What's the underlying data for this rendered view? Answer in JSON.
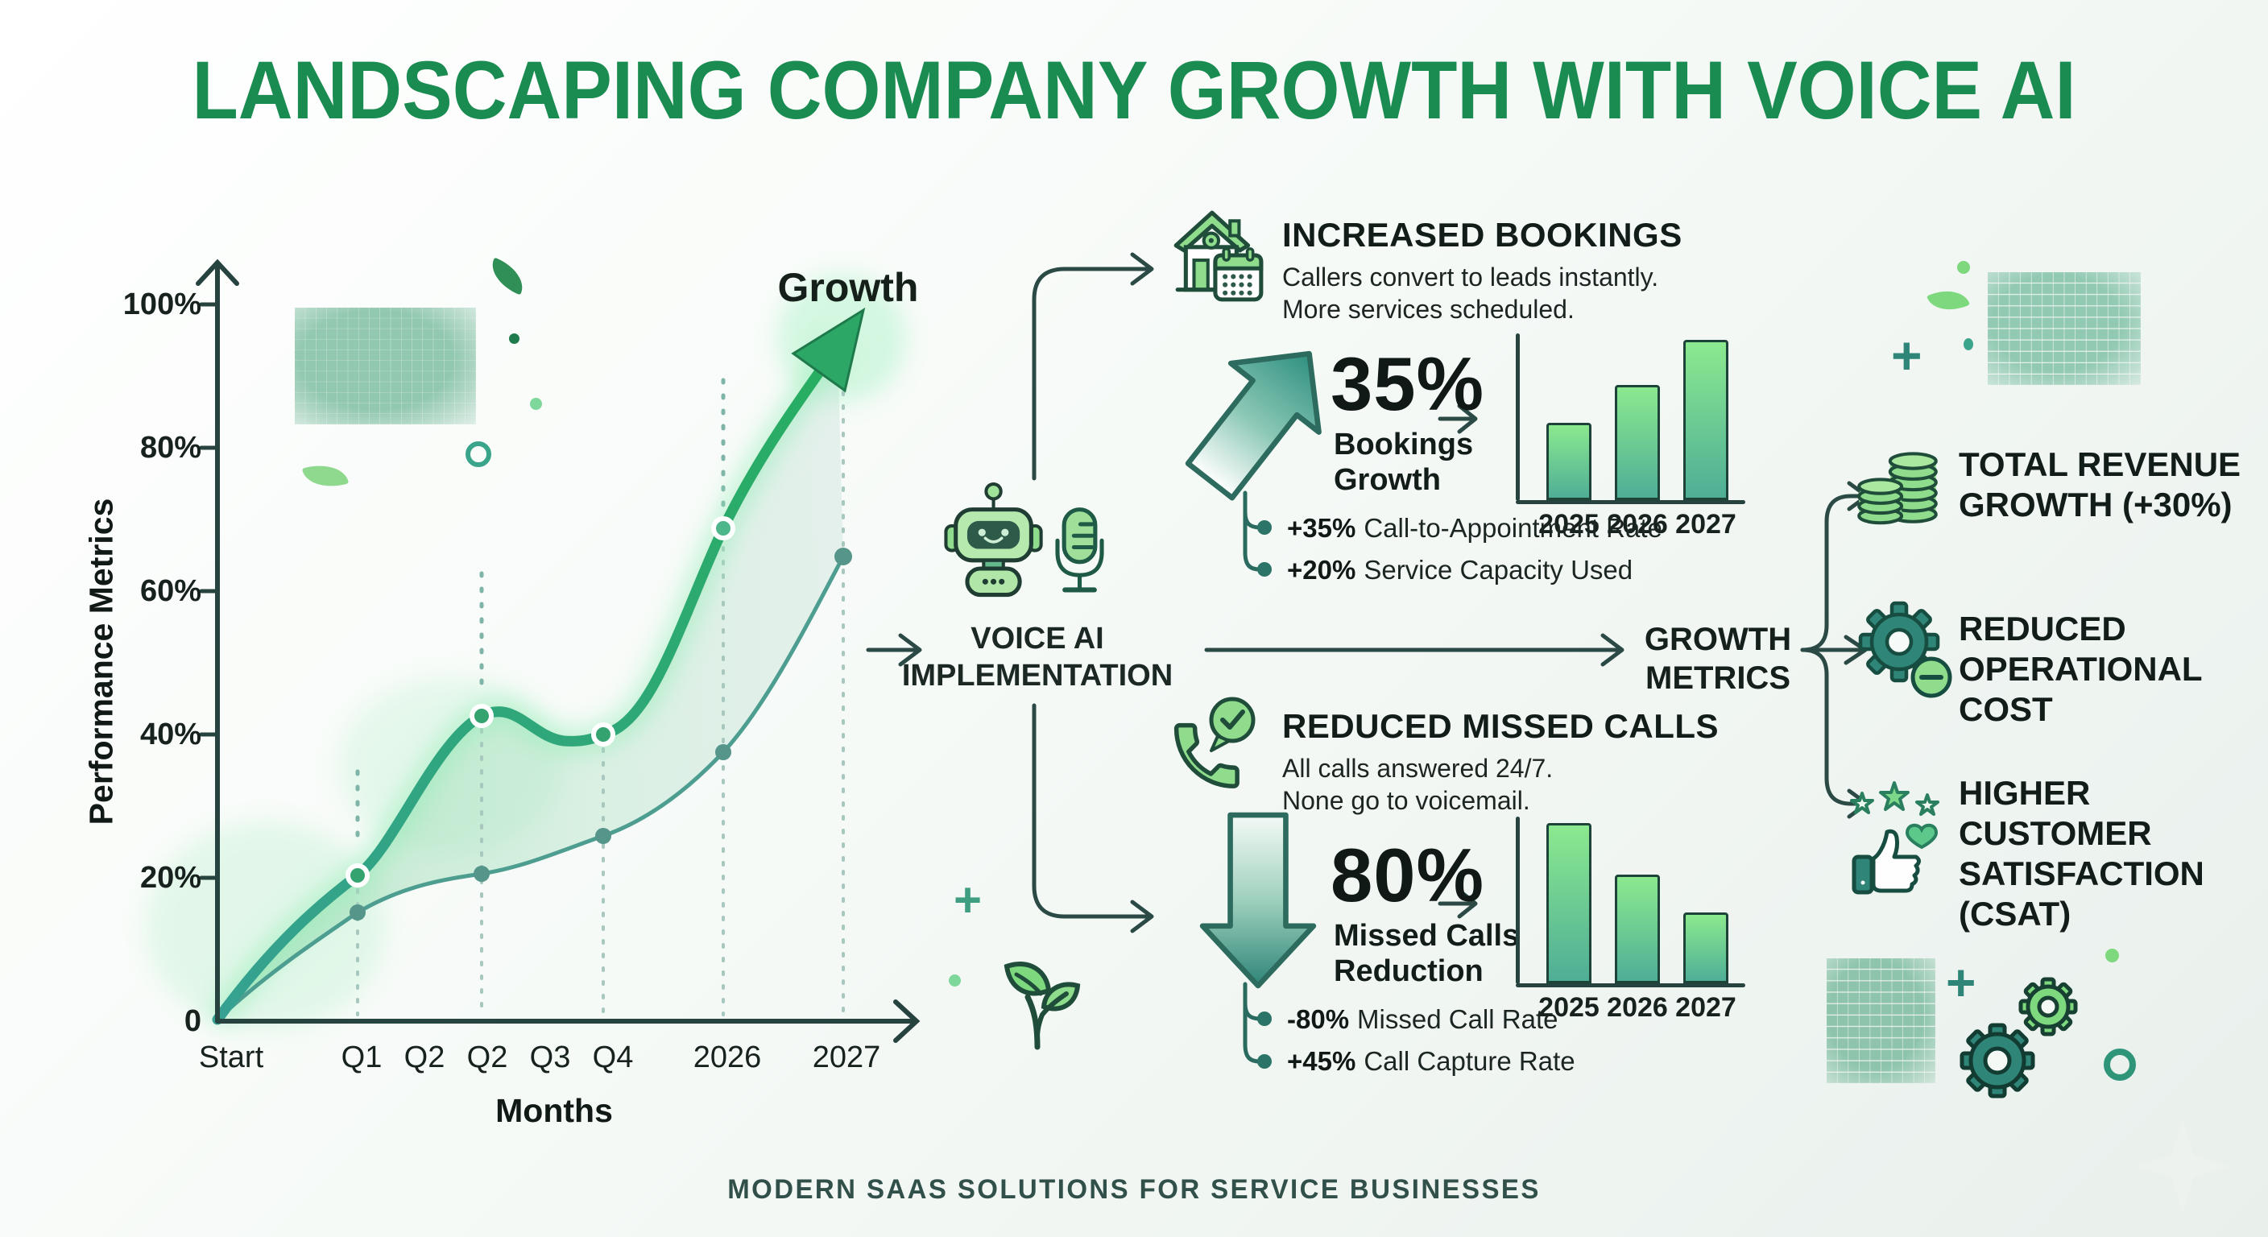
{
  "title": "LANDSCAPING COMPANY GROWTH WITH VOICE AI",
  "footer": "MODERN SAAS SOLUTIONS FOR SERVICE BUSINESSES",
  "colors": {
    "title_green": "#1a8b51",
    "dark_teal": "#2c4a45",
    "icon_green": "#8fdc8c",
    "curve_green": "#2fae62",
    "curve_teal": "#36a192"
  },
  "chart_data": [
    {
      "id": "performance-growth",
      "type": "line",
      "title": "Growth",
      "annotation": "Growth",
      "xlabel": "Months",
      "ylabel": "Performance Metrics",
      "x_ticks": [
        "Start",
        "Q1",
        "Q2",
        "Q2",
        "Q3",
        "Q4",
        "2026",
        "2027"
      ],
      "y_ticks": [
        "100%",
        "80%",
        "60%",
        "40%",
        "20%",
        "0"
      ],
      "ylim": [
        0,
        100
      ],
      "grid": false,
      "series": [
        {
          "name": "growth-curve",
          "x": [
            "Start",
            "Q1",
            "Q2",
            "Q4",
            "2026",
            "2027"
          ],
          "values": [
            0,
            21,
            42,
            40,
            70,
            95
          ]
        },
        {
          "name": "baseline-curve",
          "x": [
            "Start",
            "Q1",
            "Q2",
            "Q4",
            "2026",
            "2027"
          ],
          "values": [
            0,
            15,
            21,
            26,
            39,
            64
          ]
        }
      ]
    },
    {
      "id": "bookings-by-year",
      "type": "bar",
      "categories": [
        "2025",
        "2026",
        "2027"
      ],
      "values": [
        47,
        70,
        97
      ],
      "trend": "increasing"
    },
    {
      "id": "missed-calls-by-year",
      "type": "bar",
      "categories": [
        "2025",
        "2026",
        "2027"
      ],
      "values": [
        97,
        66,
        43
      ],
      "trend": "decreasing"
    }
  ],
  "voice_ai": {
    "line1": "VOICE AI",
    "line2": "IMPLEMENTATION"
  },
  "growth_metrics": {
    "line1": "GROWTH",
    "line2": "METRICS"
  },
  "bookings": {
    "heading": "INCREASED BOOKINGS",
    "desc_line1": "Callers convert to leads instantly.",
    "desc_line2": "More services scheduled.",
    "stat": "35%",
    "stat_line1": "Bookings",
    "stat_line2": "Growth",
    "bullet1_bold": "+35%",
    "bullet1_text": "Call-to-Appointment Rate",
    "bullet2_bold": "+20%",
    "bullet2_text": "Service Capacity Used"
  },
  "missed_calls": {
    "heading": "REDUCED MISSED CALLS",
    "desc_line1": "All calls answered 24/7.",
    "desc_line2": "None go to voicemail.",
    "stat": "80%",
    "stat_line1": "Missed Calls",
    "stat_line2": "Reduction",
    "bullet1_bold": "-80%",
    "bullet1_text": "Missed Call Rate",
    "bullet2_bold": "+45%",
    "bullet2_text": "Call Capture Rate"
  },
  "outcomes": [
    {
      "icon": "coins-icon",
      "lines": [
        "TOTAL REVENUE",
        "GROWTH (+30%)"
      ]
    },
    {
      "icon": "gear-minus-icon",
      "lines": [
        "REDUCED",
        "OPERATIONAL",
        "COST"
      ]
    },
    {
      "icon": "csat-thumbs-stars-icon",
      "lines": [
        "HIGHER",
        "CUSTOMER",
        "SATISFACTION",
        "(CSAT)"
      ]
    }
  ]
}
